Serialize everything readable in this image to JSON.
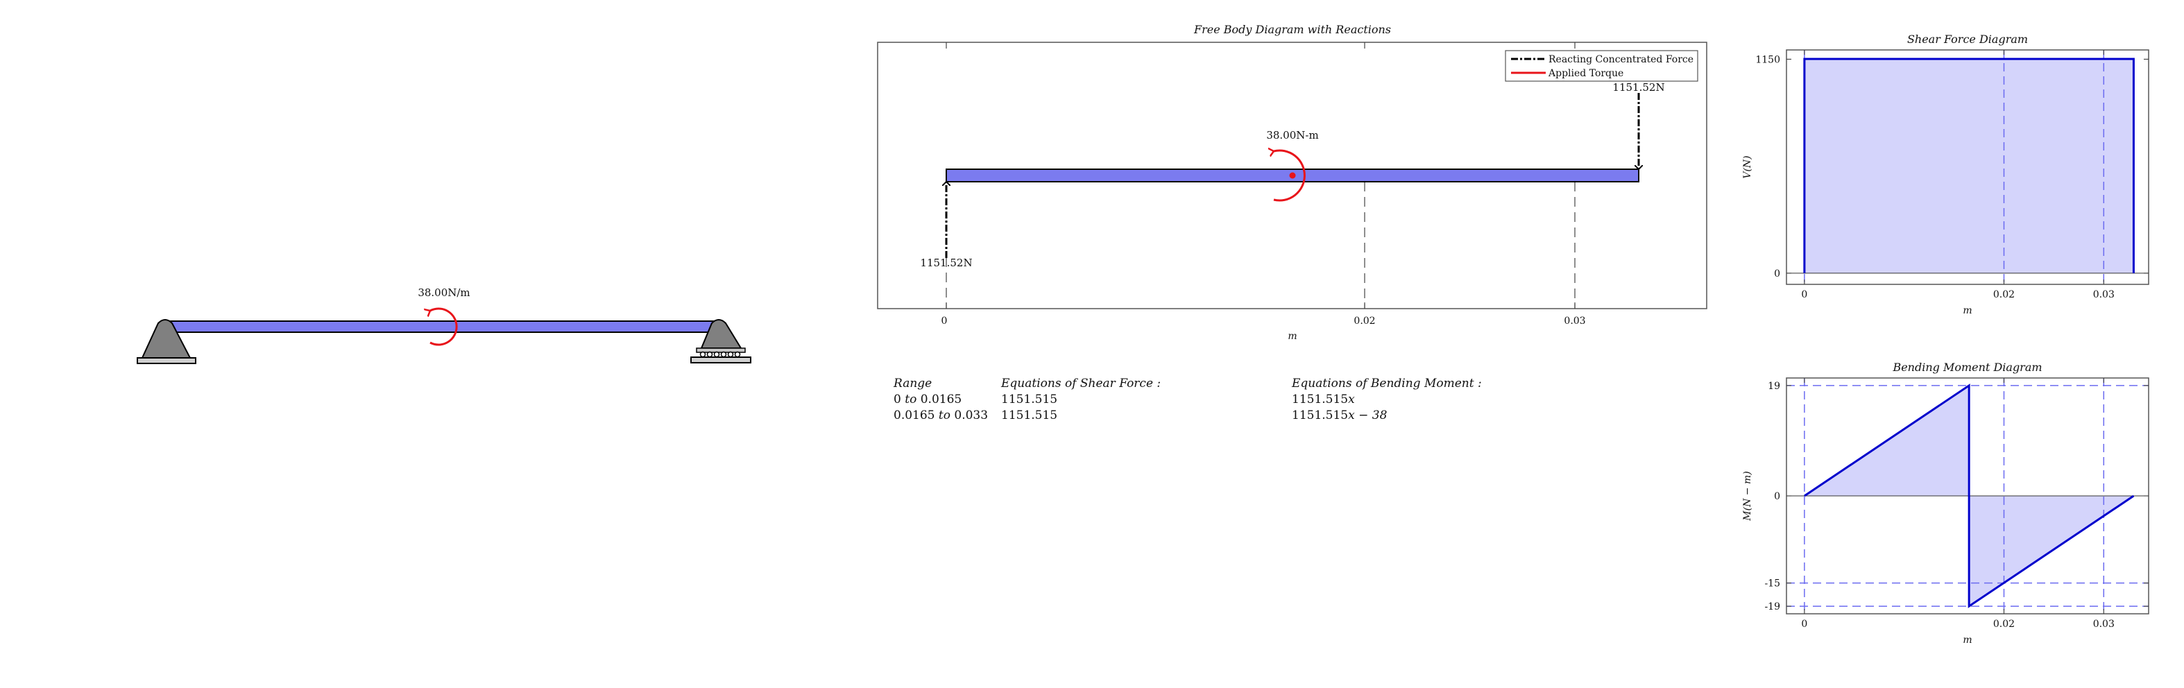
{
  "beam_sketch": {
    "load_label": "38.00N/m"
  },
  "fbd": {
    "title": "Free Body Diagram with Reactions",
    "xlabel": "m",
    "ticks": [
      "0",
      "0.02",
      "0.03"
    ],
    "legend": [
      "Reacting Concentrated Force",
      "Applied Torque"
    ],
    "torque_label": "38.00N-m",
    "reaction_left_label": "1151.52N",
    "reaction_right_label": "1151.52N",
    "colors": {
      "beam": "#7b7bef",
      "torque": "#e8141a",
      "reaction": "#000000"
    }
  },
  "equations": {
    "headers": [
      "Range",
      "Equations of Shear Force :",
      "Equations of Bending Moment :"
    ],
    "rows": [
      {
        "range_a": "0",
        "to": "to",
        "range_b": "0.0165",
        "shear": "1151.515",
        "moment_num": "1151.515",
        "moment_rest": "x"
      },
      {
        "range_a": "0.0165",
        "to": "to",
        "range_b": "0.033",
        "shear": "1151.515",
        "moment_num": "1151.515",
        "moment_rest": "x − 38"
      }
    ]
  },
  "chart_data": [
    {
      "type": "area",
      "title": "Shear Force Diagram",
      "xlabel": "m",
      "ylabel": "V(N)",
      "x": [
        0,
        0,
        0.033,
        0.033
      ],
      "y": [
        0,
        1151.515,
        1151.515,
        0
      ],
      "xlim": [
        -0.0018,
        0.0345
      ],
      "ylim": [
        -60,
        1200
      ],
      "xticks": [
        0,
        0.02,
        0.03
      ],
      "xtick_labels": [
        "0",
        "0.02",
        "0.03"
      ],
      "yticks": [
        0,
        1150
      ],
      "ytick_labels": [
        "0",
        "1150"
      ],
      "dashed_x": [
        0,
        0.02,
        0.03
      ],
      "color": "#0000cc",
      "fill": "#d4d4fb"
    },
    {
      "type": "area",
      "title": "Bending Moment Diagram",
      "xlabel": "m",
      "ylabel": "M(N − m)",
      "x": [
        0,
        0.0165,
        0.0165,
        0.033
      ],
      "y": [
        0,
        19,
        -19,
        0
      ],
      "xlim": [
        -0.0018,
        0.0345
      ],
      "ylim": [
        -20.3,
        20.3
      ],
      "xticks": [
        0,
        0.02,
        0.03
      ],
      "xtick_labels": [
        "0",
        "0.02",
        "0.03"
      ],
      "yticks": [
        19,
        0,
        -15,
        -19
      ],
      "ytick_labels": [
        "19",
        "0",
        "-15",
        "-19"
      ],
      "dashed_x": [
        0,
        0.02,
        0.03
      ],
      "dashed_y": [
        19,
        -15,
        -19
      ],
      "color": "#0000cc",
      "fill": "#d4d4fb"
    }
  ]
}
